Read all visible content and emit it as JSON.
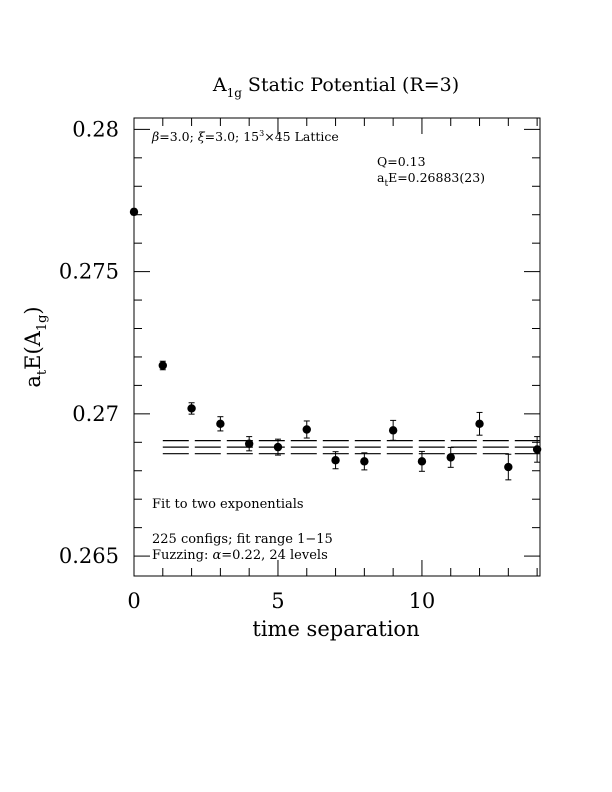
{
  "chart_data": {
    "type": "scatter",
    "title_main": "A",
    "title_sub": "1g",
    "title_rest": " Static Potential (R=3)",
    "xlabel": "time separation",
    "ylabel_a": "a",
    "ylabel_t": "t",
    "ylabel_e": "E(A",
    "ylabel_sub": "1g",
    "ylabel_close": ")",
    "xlim": [
      0,
      14.1
    ],
    "ylim": [
      0.2643,
      0.2804
    ],
    "x_ticks": [
      0,
      5,
      10
    ],
    "x_tick_labels": [
      "0",
      "5",
      "10"
    ],
    "y_ticks": [
      0.265,
      0.27,
      0.275,
      0.28
    ],
    "y_tick_labels": [
      "0.265",
      "0.27",
      "0.275",
      "0.28"
    ],
    "x_minor_step": 1,
    "y_minor_step": 0.001,
    "points": [
      {
        "x": 0,
        "y": 0.2771,
        "err": 0.0001
      },
      {
        "x": 1,
        "y": 0.2717,
        "err": 0.00015
      },
      {
        "x": 2,
        "y": 0.27019,
        "err": 0.0002
      },
      {
        "x": 3,
        "y": 0.26965,
        "err": 0.00025
      },
      {
        "x": 4,
        "y": 0.26895,
        "err": 0.00025
      },
      {
        "x": 5,
        "y": 0.26883,
        "err": 0.00028
      },
      {
        "x": 6,
        "y": 0.26945,
        "err": 0.0003
      },
      {
        "x": 7,
        "y": 0.26837,
        "err": 0.0003
      },
      {
        "x": 8,
        "y": 0.26833,
        "err": 0.0003
      },
      {
        "x": 9,
        "y": 0.26942,
        "err": 0.00035
      },
      {
        "x": 10,
        "y": 0.26833,
        "err": 0.00035
      },
      {
        "x": 11,
        "y": 0.26847,
        "err": 0.00035
      },
      {
        "x": 12,
        "y": 0.26965,
        "err": 0.0004
      },
      {
        "x": 13,
        "y": 0.26813,
        "err": 0.00045
      },
      {
        "x": 14,
        "y": 0.26875,
        "err": 0.00045
      }
    ],
    "fit": {
      "value": 0.26883,
      "err": 0.00023,
      "x_start": 1,
      "x_end": 14.1
    },
    "annotations": {
      "lattice_beta": "β",
      "lattice_text1": "=3.0; ",
      "lattice_xi": "ξ",
      "lattice_text2": "=3.0; 15",
      "lattice_sup": "3",
      "lattice_text3": "×45 Lattice",
      "q_value": "Q=0.13",
      "energy_a": "a",
      "energy_sub": "t",
      "energy_rest": "E=0.26883(23)",
      "fit_label": "Fit to two exponentials",
      "configs": "225 configs; fit range 1−15",
      "fuzzing_prefix": "Fuzzing: ",
      "fuzzing_alpha": "α",
      "fuzzing_rest": "=0.22, 24 levels"
    }
  }
}
